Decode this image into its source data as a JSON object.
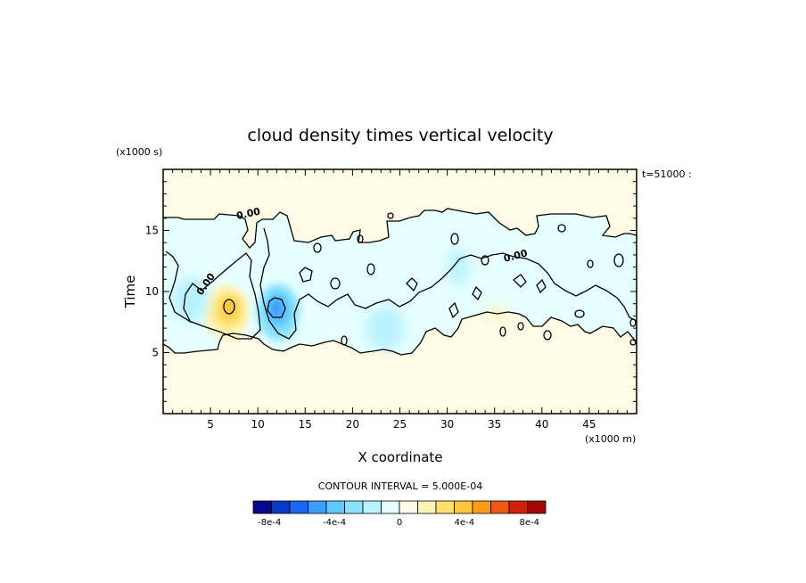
{
  "chart_data": {
    "type": "heatmap",
    "title": "cloud density times vertical velocity",
    "xlabel": "X coordinate",
    "ylabel": "Time",
    "x_unit_note": "(x1000 m)",
    "y_unit_note": "(x1000 s)",
    "time_label": "t=51000 :",
    "xlim": [
      0,
      50
    ],
    "ylim": [
      0,
      20
    ],
    "x_ticks": [
      5,
      10,
      15,
      20,
      25,
      30,
      35,
      40,
      45
    ],
    "y_ticks": [
      5,
      10,
      15
    ],
    "contour_label": "0.00",
    "contour_interval_text": "CONTOUR INTERVAL = 5.000E-04",
    "colorbar": {
      "colors": [
        "#08088c",
        "#0a38c8",
        "#1c66f0",
        "#3c9cff",
        "#5ec8ff",
        "#8ae2ff",
        "#b8f2ff",
        "#e6ffff",
        "#fffbe6",
        "#fff3b4",
        "#ffe070",
        "#ffc63c",
        "#ff9a1a",
        "#f05a0e",
        "#d2200a",
        "#a00808"
      ],
      "tick_labels": [
        "-8e-4",
        "-4e-4",
        "0",
        "4e-4",
        "8e-4"
      ],
      "tick_values": [
        -0.0008,
        -0.0004,
        0,
        0.0004,
        0.0008
      ],
      "range": [
        -0.0009,
        0.0009
      ]
    },
    "features": [
      {
        "kind": "positive_maximum",
        "x": 7,
        "y": 8.7,
        "approx_value": 0.0006
      },
      {
        "kind": "negative_minimum",
        "x": 11.8,
        "y": 8.7,
        "approx_value": -0.0005
      },
      {
        "kind": "negative_weak",
        "x": 2.5,
        "y": 9.5,
        "approx_value": -0.0002
      },
      {
        "kind": "negative_weak",
        "x": 24,
        "y": 7.5,
        "approx_value": -0.00015
      },
      {
        "kind": "positive_weak",
        "x": 35.5,
        "y": 8.2,
        "approx_value": 5e-05
      }
    ]
  }
}
